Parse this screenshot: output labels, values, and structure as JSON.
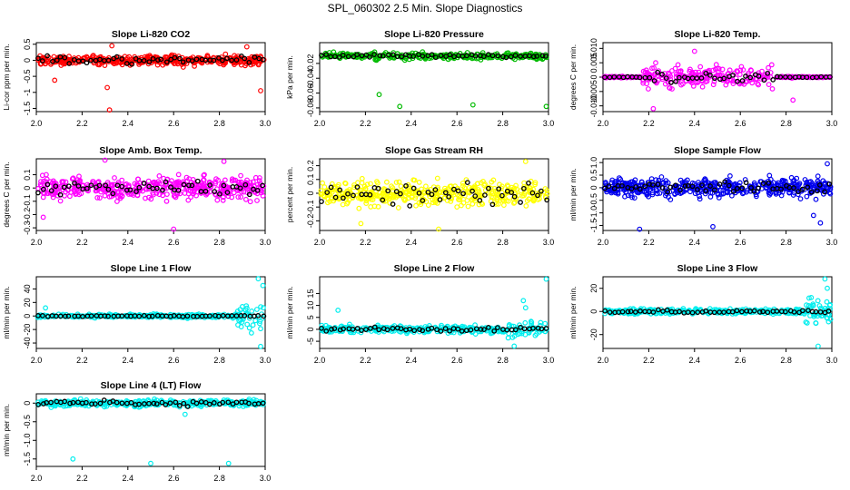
{
  "figure_title": "SPL_060302  2.5 Min. Slope Diagnostics",
  "chart_data": [
    {
      "type": "scatter",
      "title": "Slope Li-820 CO2",
      "ylabel": "Li-cor ppm per min.",
      "color": "#ff0000",
      "xlim": [
        2.0,
        3.0
      ],
      "ylim": [
        -1.6,
        0.55
      ],
      "yticks": [
        "0.5",
        "0",
        "-0.5",
        "-1",
        "-1.5"
      ],
      "ytick_vals": [
        0.5,
        0,
        -0.5,
        -1,
        -1.5
      ],
      "xticks": [
        "2.0",
        "2.2",
        "2.4",
        "2.6",
        "2.8",
        "3.0"
      ],
      "n_points": 420,
      "center": 0.0,
      "spread": 0.14,
      "black_spread": 0.12,
      "outliers": [
        [
          2.02,
          -0.12
        ],
        [
          2.08,
          -0.62
        ],
        [
          2.31,
          -0.85
        ],
        [
          2.32,
          -1.55
        ],
        [
          2.33,
          0.45
        ],
        [
          2.98,
          -0.95
        ],
        [
          2.92,
          0.42
        ]
      ]
    },
    {
      "type": "scatter",
      "title": "Slope Li-820 Pressure",
      "ylabel": "kPa per min.",
      "color": "#00bb00",
      "xlim": [
        2.0,
        3.0
      ],
      "ylim": [
        -0.085,
        0.008
      ],
      "yticks": [
        "-0.02",
        "-0.04",
        "-0.06",
        "-0.08"
      ],
      "ytick_vals": [
        -0.02,
        -0.04,
        -0.06,
        -0.08
      ],
      "xticks": [
        "2.0",
        "2.2",
        "2.4",
        "2.6",
        "2.8",
        "3.0"
      ],
      "n_points": 300,
      "center": -0.01,
      "spread": 0.004,
      "black_spread": 0.002,
      "outliers": [
        [
          2.26,
          -0.062
        ],
        [
          2.35,
          -0.078
        ],
        [
          2.67,
          -0.076
        ],
        [
          2.99,
          -0.078
        ]
      ]
    },
    {
      "type": "scatter",
      "title": "Slope Li-820 Temp.",
      "ylabel": "degrees C per min.",
      "color": "#ff00ff",
      "xlim": [
        2.0,
        3.0
      ],
      "ylim": [
        -0.012,
        0.012
      ],
      "yticks": [
        "0.010",
        "0.005",
        "0",
        "-0.005",
        "-0.010"
      ],
      "ytick_vals": [
        0.01,
        0.005,
        0,
        -0.005,
        -0.01
      ],
      "xticks": [
        "2.0",
        "2.2",
        "2.4",
        "2.6",
        "2.8",
        "3.0"
      ],
      "n_points": 360,
      "center": 0.0,
      "spread": 0.0032,
      "black_spread": 0.0015,
      "band": [
        2.17,
        2.75
      ],
      "outliers": [
        [
          2.22,
          -0.011
        ],
        [
          2.4,
          0.009
        ],
        [
          2.83,
          -0.008
        ],
        [
          2.23,
          0.005
        ]
      ]
    },
    {
      "type": "scatter",
      "title": "Slope Amb. Box Temp.",
      "ylabel": "degrees C per min.",
      "color": "#ff00ff",
      "xlim": [
        2.0,
        3.0
      ],
      "ylim": [
        -0.32,
        0.22
      ],
      "yticks": [
        "0.1",
        "0",
        "-0.1",
        "-0.2",
        "-0.3"
      ],
      "ytick_vals": [
        0.1,
        0,
        -0.1,
        -0.2,
        -0.3
      ],
      "xticks": [
        "2.0",
        "2.2",
        "2.4",
        "2.6",
        "2.8",
        "3.0"
      ],
      "n_points": 440,
      "center": 0.0,
      "spread": 0.08,
      "black_spread": 0.05,
      "outliers": [
        [
          2.6,
          -0.31
        ],
        [
          2.3,
          0.21
        ],
        [
          2.82,
          0.2
        ],
        [
          2.03,
          -0.22
        ]
      ]
    },
    {
      "type": "scatter",
      "title": "Slope Gas Stream RH",
      "ylabel": "percent per min.",
      "color": "#ffff00",
      "xlim": [
        2.0,
        3.0
      ],
      "ylim": [
        -0.27,
        0.25
      ],
      "yticks": [
        "0.2",
        "0.1",
        "0",
        "-0.1",
        "-0.2"
      ],
      "ytick_vals": [
        0.2,
        0.1,
        0,
        -0.1,
        -0.2
      ],
      "xticks": [
        "2.0",
        "2.2",
        "2.4",
        "2.6",
        "2.8",
        "3.0"
      ],
      "n_points": 420,
      "center": 0.0,
      "spread": 0.08,
      "black_spread": 0.07,
      "outliers": [
        [
          2.52,
          -0.26
        ],
        [
          2.9,
          0.23
        ],
        [
          2.18,
          -0.22
        ]
      ]
    },
    {
      "type": "scatter",
      "title": "Slope Sample Flow",
      "ylabel": "ml/min per min.",
      "color": "#0000ee",
      "xlim": [
        2.0,
        3.0
      ],
      "ylim": [
        -1.7,
        1.15
      ],
      "yticks": [
        "1.0",
        "0.5",
        "0",
        "-0.5",
        "-1.0",
        "-1.5"
      ],
      "ytick_vals": [
        1.0,
        0.5,
        0,
        -0.5,
        -1.0,
        -1.5
      ],
      "xticks": [
        "2.0",
        "2.2",
        "2.4",
        "2.6",
        "2.8",
        "3.0"
      ],
      "n_points": 460,
      "center": 0.0,
      "spread": 0.35,
      "black_spread": 0.18,
      "outliers": [
        [
          2.16,
          -1.65
        ],
        [
          2.48,
          -1.55
        ],
        [
          2.92,
          -1.1
        ],
        [
          2.95,
          -1.4
        ],
        [
          2.98,
          0.95
        ]
      ]
    },
    {
      "type": "scatter",
      "title": "Slope Line 1 Flow",
      "ylabel": "ml/min per min.",
      "color": "#00eeee",
      "xlim": [
        2.0,
        3.0
      ],
      "ylim": [
        -48,
        58
      ],
      "yticks": [
        "40",
        "20",
        "0",
        "-20",
        "-40"
      ],
      "ytick_vals": [
        40,
        20,
        0,
        -20,
        -40
      ],
      "xticks": [
        "2.0",
        "2.2",
        "2.4",
        "2.6",
        "2.8",
        "3.0"
      ],
      "n_points": 320,
      "center": 0.0,
      "spread": 2.5,
      "black_spread": 0.8,
      "tail_from": 2.88,
      "tail_spread": 18,
      "outliers": [
        [
          2.04,
          12
        ],
        [
          2.97,
          55
        ],
        [
          2.98,
          -45
        ],
        [
          2.99,
          45
        ],
        [
          2.94,
          -25
        ]
      ]
    },
    {
      "type": "scatter",
      "title": "Slope Line 2 Flow",
      "ylabel": "ml/min per min.",
      "color": "#00eeee",
      "xlim": [
        2.0,
        3.0
      ],
      "ylim": [
        -8,
        22
      ],
      "yticks": [
        "15",
        "10",
        "5",
        "0",
        "-5"
      ],
      "ytick_vals": [
        15,
        10,
        5,
        0,
        -5
      ],
      "xticks": [
        "2.0",
        "2.2",
        "2.4",
        "2.6",
        "2.8",
        "3.0"
      ],
      "n_points": 340,
      "center": 0.0,
      "spread": 1.4,
      "black_spread": 0.9,
      "tail_from": 2.82,
      "tail_spread": 4,
      "outliers": [
        [
          2.08,
          8
        ],
        [
          2.89,
          12
        ],
        [
          2.99,
          21
        ],
        [
          2.85,
          -7
        ],
        [
          2.9,
          9
        ]
      ]
    },
    {
      "type": "scatter",
      "title": "Slope Line 3 Flow",
      "ylabel": "ml/min per min.",
      "color": "#00eeee",
      "xlim": [
        2.0,
        3.0
      ],
      "ylim": [
        -32,
        30
      ],
      "yticks": [
        "20",
        "0",
        "-20"
      ],
      "ytick_vals": [
        20,
        0,
        -20
      ],
      "xticks": [
        "2.0",
        "2.2",
        "2.4",
        "2.6",
        "2.8",
        "3.0"
      ],
      "n_points": 340,
      "center": 0.0,
      "spread": 2.2,
      "black_spread": 1.2,
      "tail_from": 2.86,
      "tail_spread": 10,
      "outliers": [
        [
          2.94,
          -30
        ],
        [
          2.98,
          20
        ],
        [
          2.97,
          28
        ],
        [
          2.91,
          12
        ]
      ]
    },
    {
      "type": "scatter",
      "title": "Slope Line 4 (LT) Flow",
      "ylabel": "ml/min per min.",
      "color": "#00eeee",
      "xlim": [
        2.0,
        3.0
      ],
      "ylim": [
        -1.7,
        0.25
      ],
      "yticks": [
        "0",
        "-0.5",
        "-1.0",
        "-1.5"
      ],
      "ytick_vals": [
        0,
        -0.5,
        -1.0,
        -1.5
      ],
      "xticks": [
        "2.0",
        "2.2",
        "2.4",
        "2.6",
        "2.8",
        "3.0"
      ],
      "n_points": 360,
      "center": 0.0,
      "spread": 0.08,
      "black_spread": 0.06,
      "outliers": [
        [
          2.16,
          -1.5
        ],
        [
          2.5,
          -1.62
        ],
        [
          2.84,
          -1.62
        ],
        [
          2.65,
          -0.3
        ]
      ]
    }
  ]
}
